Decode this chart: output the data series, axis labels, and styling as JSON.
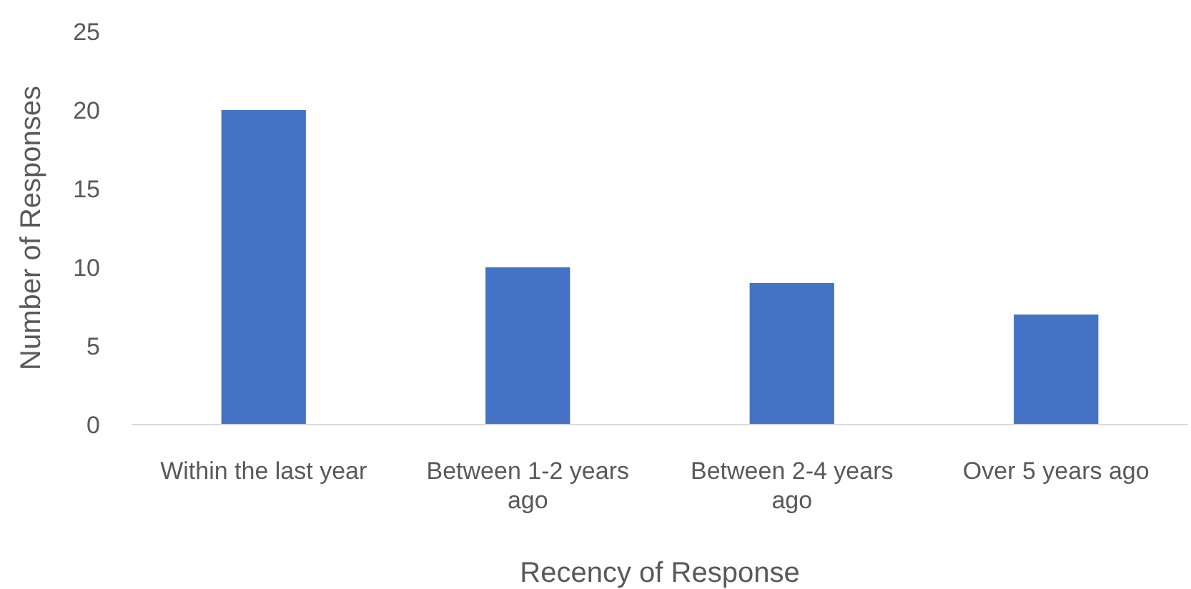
{
  "chart_data": {
    "type": "bar",
    "xlabel": "Recency of Response",
    "ylabel": "Number of Responses",
    "categories": [
      "Within the last year",
      "Between 1-2 years ago",
      "Between 2-4 years ago",
      "Over 5 years ago"
    ],
    "values": [
      20,
      10,
      9,
      7
    ],
    "color": "#4472c4",
    "ylim": [
      0,
      25
    ],
    "yticks": [
      0,
      5,
      10,
      15,
      20,
      25
    ],
    "grid": false
  }
}
